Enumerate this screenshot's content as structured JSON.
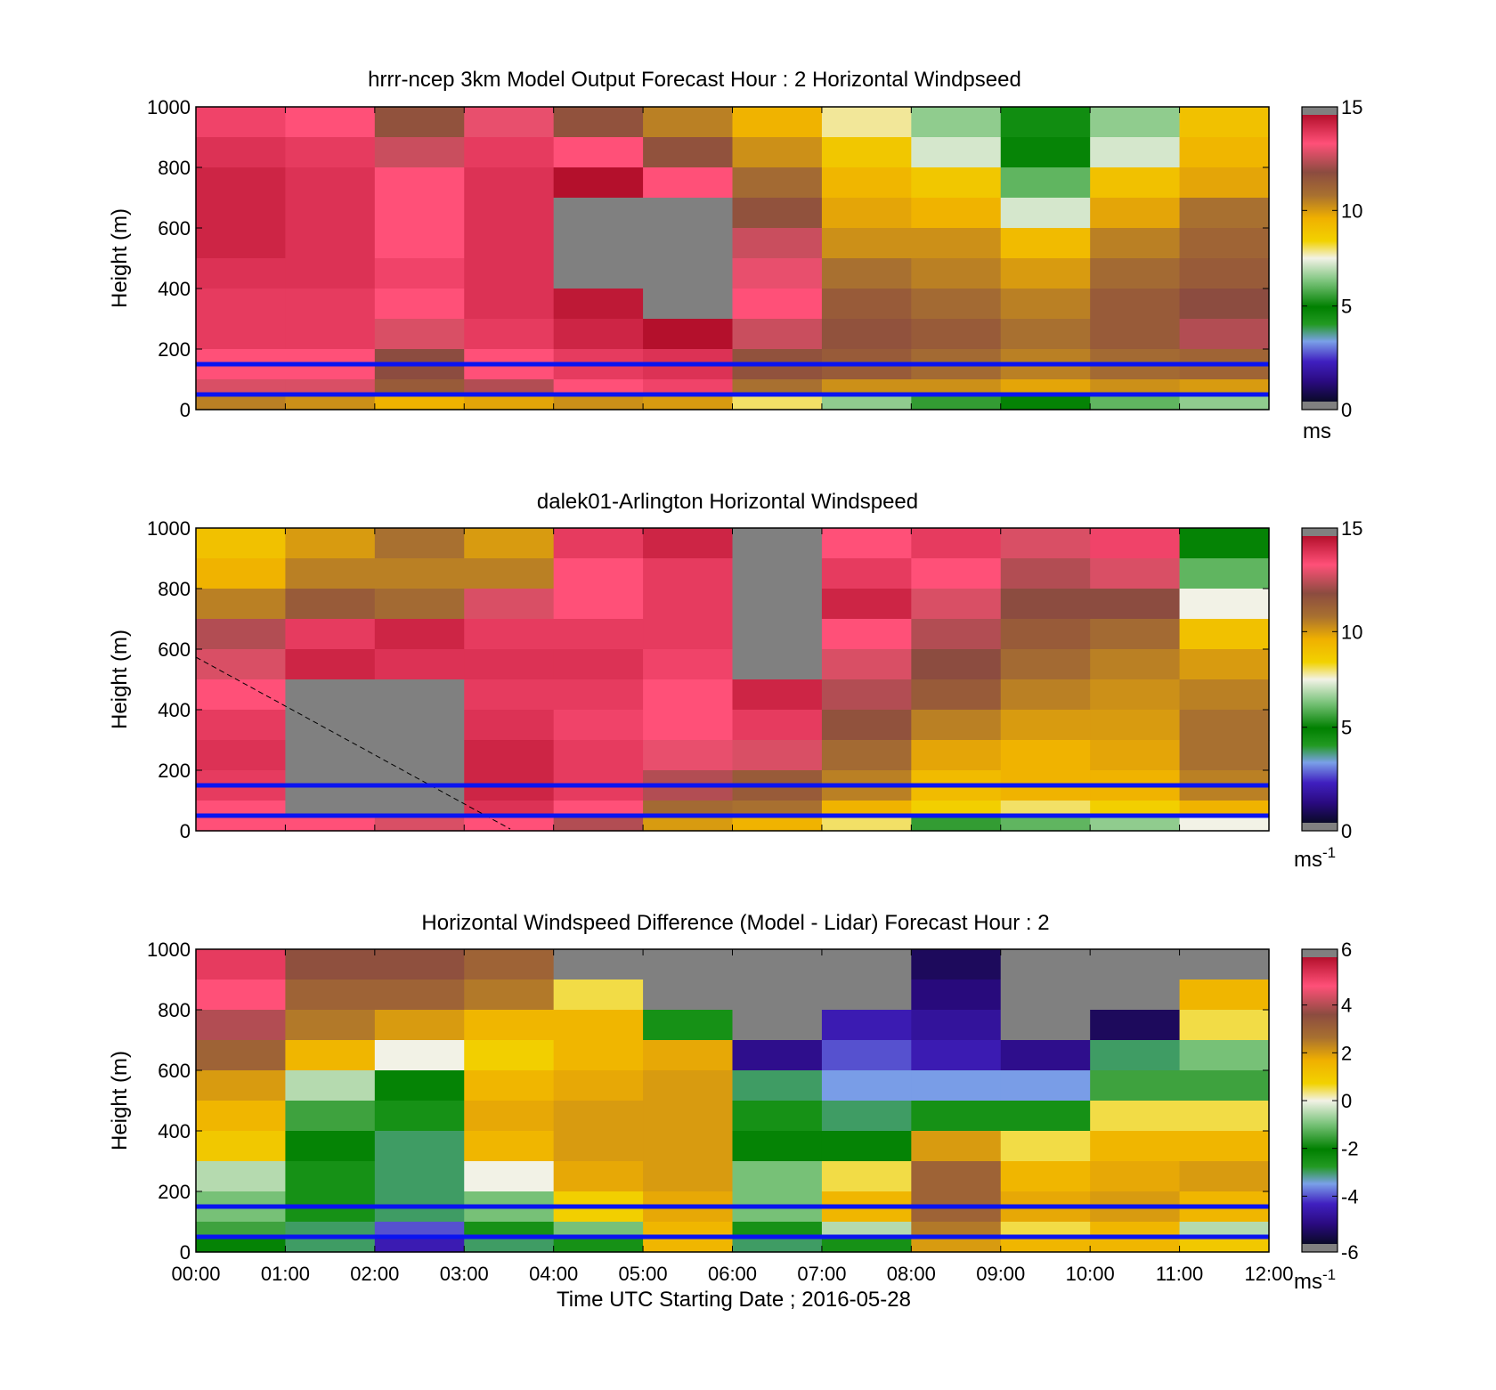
{
  "figure": {
    "x_tick_labels": [
      "00:00",
      "01:00",
      "02:00",
      "03:00",
      "04:00",
      "05:00",
      "06:00",
      "07:00",
      "08:00",
      "09:00",
      "10:00",
      "11:00",
      "12:00"
    ],
    "x_label": "Time UTC  Starting Date ; 2016-05-28",
    "y_label": "Height (m)",
    "y_tick_labels": [
      "0",
      "200",
      "400",
      "600",
      "800",
      "1000"
    ],
    "reference_lines_m": [
      150,
      50
    ],
    "reference_line_color": "#0a14f0",
    "missing_color": "#808080"
  },
  "chart_data": [
    {
      "type": "heatmap",
      "title": "hrrr-ncep 3km Model Output   Forecast Hour : 2 Horizontal Windpseed",
      "xlabel": "",
      "ylabel": "Height (m)",
      "x_range_hours": [
        0,
        12
      ],
      "ylim": [
        0,
        1000
      ],
      "colorbar": {
        "min": 0,
        "max": 15,
        "ticks": [
          "0",
          "5",
          "10",
          "15"
        ],
        "units": "ms"
      },
      "x_hours": [
        0,
        1,
        2,
        3,
        4,
        5,
        6,
        7,
        8,
        9,
        10,
        11
      ],
      "heights_m": [
        1000,
        900,
        800,
        700,
        600,
        500,
        400,
        300,
        200,
        100,
        50
      ],
      "values": [
        [
          13.8,
          13.5,
          11.8,
          13.2,
          11.8,
          10.5,
          9.5,
          7.8,
          6.5,
          4.5,
          6.5,
          9.0
        ],
        [
          14.2,
          14.0,
          12.8,
          14.0,
          13.5,
          11.8,
          10.2,
          8.8,
          7.2,
          4.8,
          7.2,
          9.4
        ],
        [
          14.5,
          14.2,
          13.5,
          14.2,
          15.0,
          13.5,
          11.0,
          9.4,
          8.8,
          6.0,
          9.0,
          9.8
        ],
        [
          14.5,
          14.2,
          13.5,
          14.2,
          null,
          null,
          11.8,
          9.8,
          9.5,
          7.2,
          9.8,
          10.8
        ],
        [
          14.5,
          14.2,
          13.5,
          14.2,
          null,
          null,
          12.8,
          10.2,
          10.2,
          9.2,
          10.5,
          11.2
        ],
        [
          14.2,
          14.2,
          13.8,
          14.2,
          null,
          null,
          13.2,
          10.8,
          10.5,
          10.0,
          11.0,
          11.5
        ],
        [
          14.0,
          14.0,
          13.5,
          14.2,
          14.8,
          null,
          13.5,
          11.5,
          11.0,
          10.5,
          11.5,
          12.0
        ],
        [
          14.0,
          14.0,
          13.0,
          14.0,
          14.5,
          15.0,
          12.8,
          11.8,
          11.5,
          10.8,
          11.5,
          12.5
        ],
        [
          13.5,
          13.5,
          12.0,
          13.5,
          14.0,
          14.2,
          11.8,
          11.5,
          11.0,
          10.5,
          11.0,
          11.2
        ],
        [
          13.0,
          13.0,
          11.5,
          12.5,
          13.5,
          13.8,
          10.8,
          10.2,
          10.2,
          9.8,
          10.2,
          10.0
        ],
        [
          10.5,
          10.2,
          9.5,
          9.8,
          10.2,
          10.0,
          8.0,
          6.5,
          5.5,
          5.0,
          6.0,
          6.5
        ]
      ]
    },
    {
      "type": "heatmap",
      "title": "dalek01-Arlington  Horizontal Windspeed",
      "xlabel": "",
      "ylabel": "Height (m)",
      "x_range_hours": [
        0,
        12
      ],
      "ylim": [
        0,
        1000
      ],
      "colorbar": {
        "min": 0,
        "max": 15,
        "ticks": [
          "0",
          "5",
          "10",
          "15"
        ],
        "units": "ms",
        "units_superscript": "-1"
      },
      "x_hours": [
        0,
        1,
        2,
        3,
        4,
        5,
        6,
        7,
        8,
        9,
        10,
        11
      ],
      "heights_m": [
        1000,
        900,
        800,
        700,
        600,
        500,
        400,
        300,
        200,
        100,
        50
      ],
      "values": [
        [
          9.0,
          10.0,
          10.8,
          10.0,
          14.0,
          14.5,
          null,
          13.5,
          14.0,
          13.0,
          13.8,
          5.0
        ],
        [
          9.5,
          10.5,
          10.5,
          10.5,
          13.5,
          14.0,
          null,
          14.0,
          13.5,
          12.5,
          13.0,
          6.0
        ],
        [
          10.5,
          11.5,
          11.0,
          13.0,
          13.5,
          14.0,
          null,
          14.5,
          13.0,
          12.0,
          12.0,
          7.5
        ],
        [
          12.5,
          14.0,
          14.5,
          14.0,
          14.0,
          14.0,
          null,
          13.5,
          12.5,
          11.5,
          11.0,
          9.0
        ],
        [
          13.0,
          14.5,
          14.2,
          14.2,
          14.2,
          13.8,
          null,
          13.0,
          12.0,
          11.0,
          10.5,
          10.0
        ],
        [
          13.5,
          null,
          null,
          14.0,
          14.0,
          13.5,
          14.5,
          12.5,
          11.5,
          10.5,
          10.2,
          10.5
        ],
        [
          14.0,
          null,
          null,
          14.2,
          13.8,
          13.5,
          14.0,
          11.8,
          10.5,
          10.0,
          10.0,
          10.8
        ],
        [
          14.2,
          null,
          null,
          14.5,
          14.0,
          13.2,
          13.0,
          11.0,
          9.8,
          9.5,
          9.8,
          10.8
        ],
        [
          14.0,
          null,
          null,
          14.5,
          14.0,
          12.5,
          11.5,
          10.5,
          9.2,
          9.5,
          9.5,
          10.5
        ],
        [
          13.5,
          null,
          null,
          14.2,
          13.5,
          11.0,
          10.8,
          9.5,
          8.5,
          8.0,
          8.5,
          9.5
        ],
        [
          13.5,
          13.5,
          13.0,
          13.5,
          12.5,
          10.0,
          9.5,
          8.0,
          5.5,
          6.0,
          6.5,
          7.5
        ]
      ]
    },
    {
      "type": "heatmap",
      "title": "Horizontal Windspeed Difference (Model - Lidar) Forecast Hour : 2",
      "xlabel": "Time UTC  Starting Date ; 2016-05-28",
      "ylabel": "Height (m)",
      "x_range_hours": [
        0,
        12
      ],
      "ylim": [
        0,
        1000
      ],
      "colorbar": {
        "min": -6,
        "max": 6,
        "ticks": [
          "-6",
          "-4",
          "-2",
          "0",
          "2",
          "4",
          "6"
        ],
        "units": "ms",
        "units_superscript": "-1"
      },
      "x_hours": [
        0,
        1,
        2,
        3,
        4,
        5,
        6,
        7,
        8,
        9,
        10,
        11
      ],
      "heights_m": [
        1000,
        900,
        800,
        700,
        600,
        500,
        400,
        300,
        200,
        100,
        50
      ],
      "values": [
        [
          5.2,
          3.5,
          3.5,
          3.0,
          null,
          null,
          null,
          null,
          -5.5,
          null,
          null,
          null
        ],
        [
          4.8,
          3.0,
          3.0,
          2.5,
          0.5,
          null,
          null,
          null,
          -5.2,
          null,
          null,
          1.5
        ],
        [
          4.0,
          2.5,
          2.0,
          1.5,
          1.5,
          -2.5,
          null,
          -4.5,
          -4.8,
          null,
          -5.5,
          0.5
        ],
        [
          3.0,
          1.5,
          0.0,
          0.8,
          1.5,
          1.8,
          -5.0,
          -4.0,
          -4.5,
          -5.0,
          -3.0,
          -1.0
        ],
        [
          2.0,
          -0.5,
          -2.0,
          1.5,
          1.8,
          2.0,
          -3.0,
          -3.5,
          -3.5,
          -3.5,
          -1.5,
          -1.5
        ],
        [
          1.5,
          -1.5,
          -2.5,
          1.8,
          2.0,
          2.0,
          -2.5,
          -3.0,
          -2.5,
          -2.5,
          0.5,
          0.5
        ],
        [
          1.0,
          -2.0,
          -3.0,
          1.5,
          2.0,
          2.0,
          -2.0,
          -2.0,
          2.0,
          0.5,
          1.5,
          1.5
        ],
        [
          -0.5,
          -2.5,
          -3.0,
          0.0,
          1.8,
          2.0,
          -1.0,
          0.5,
          3.0,
          1.5,
          1.8,
          2.0
        ],
        [
          -1.0,
          -2.5,
          -3.0,
          -1.0,
          0.8,
          1.8,
          -1.0,
          1.5,
          3.0,
          1.8,
          2.0,
          1.5
        ],
        [
          -1.5,
          -3.0,
          -4.0,
          -2.5,
          -1.0,
          1.5,
          -2.5,
          -0.5,
          2.5,
          0.5,
          1.5,
          -0.5
        ],
        [
          -2.0,
          -3.0,
          -4.5,
          -3.0,
          -2.5,
          1.5,
          -3.0,
          -2.5,
          2.0,
          1.5,
          1.5,
          1.0
        ]
      ]
    }
  ]
}
